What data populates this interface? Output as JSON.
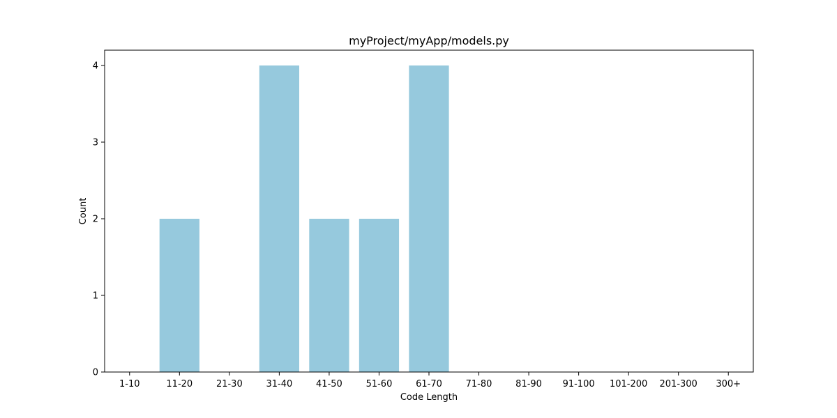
{
  "chart_data": {
    "type": "bar",
    "title": "myProject/myApp/models.py",
    "xlabel": "Code Length",
    "ylabel": "Count",
    "categories": [
      "1-10",
      "11-20",
      "21-30",
      "31-40",
      "41-50",
      "51-60",
      "61-70",
      "71-80",
      "81-90",
      "91-100",
      "101-200",
      "201-300",
      "300+"
    ],
    "values": [
      0,
      2,
      0,
      4,
      2,
      2,
      4,
      0,
      0,
      0,
      0,
      0,
      0
    ],
    "ylim": [
      0,
      4.2
    ],
    "yticks": [
      0,
      1,
      2,
      3,
      4
    ],
    "bar_color": "#96c9dd",
    "grid": false,
    "legend": false
  }
}
